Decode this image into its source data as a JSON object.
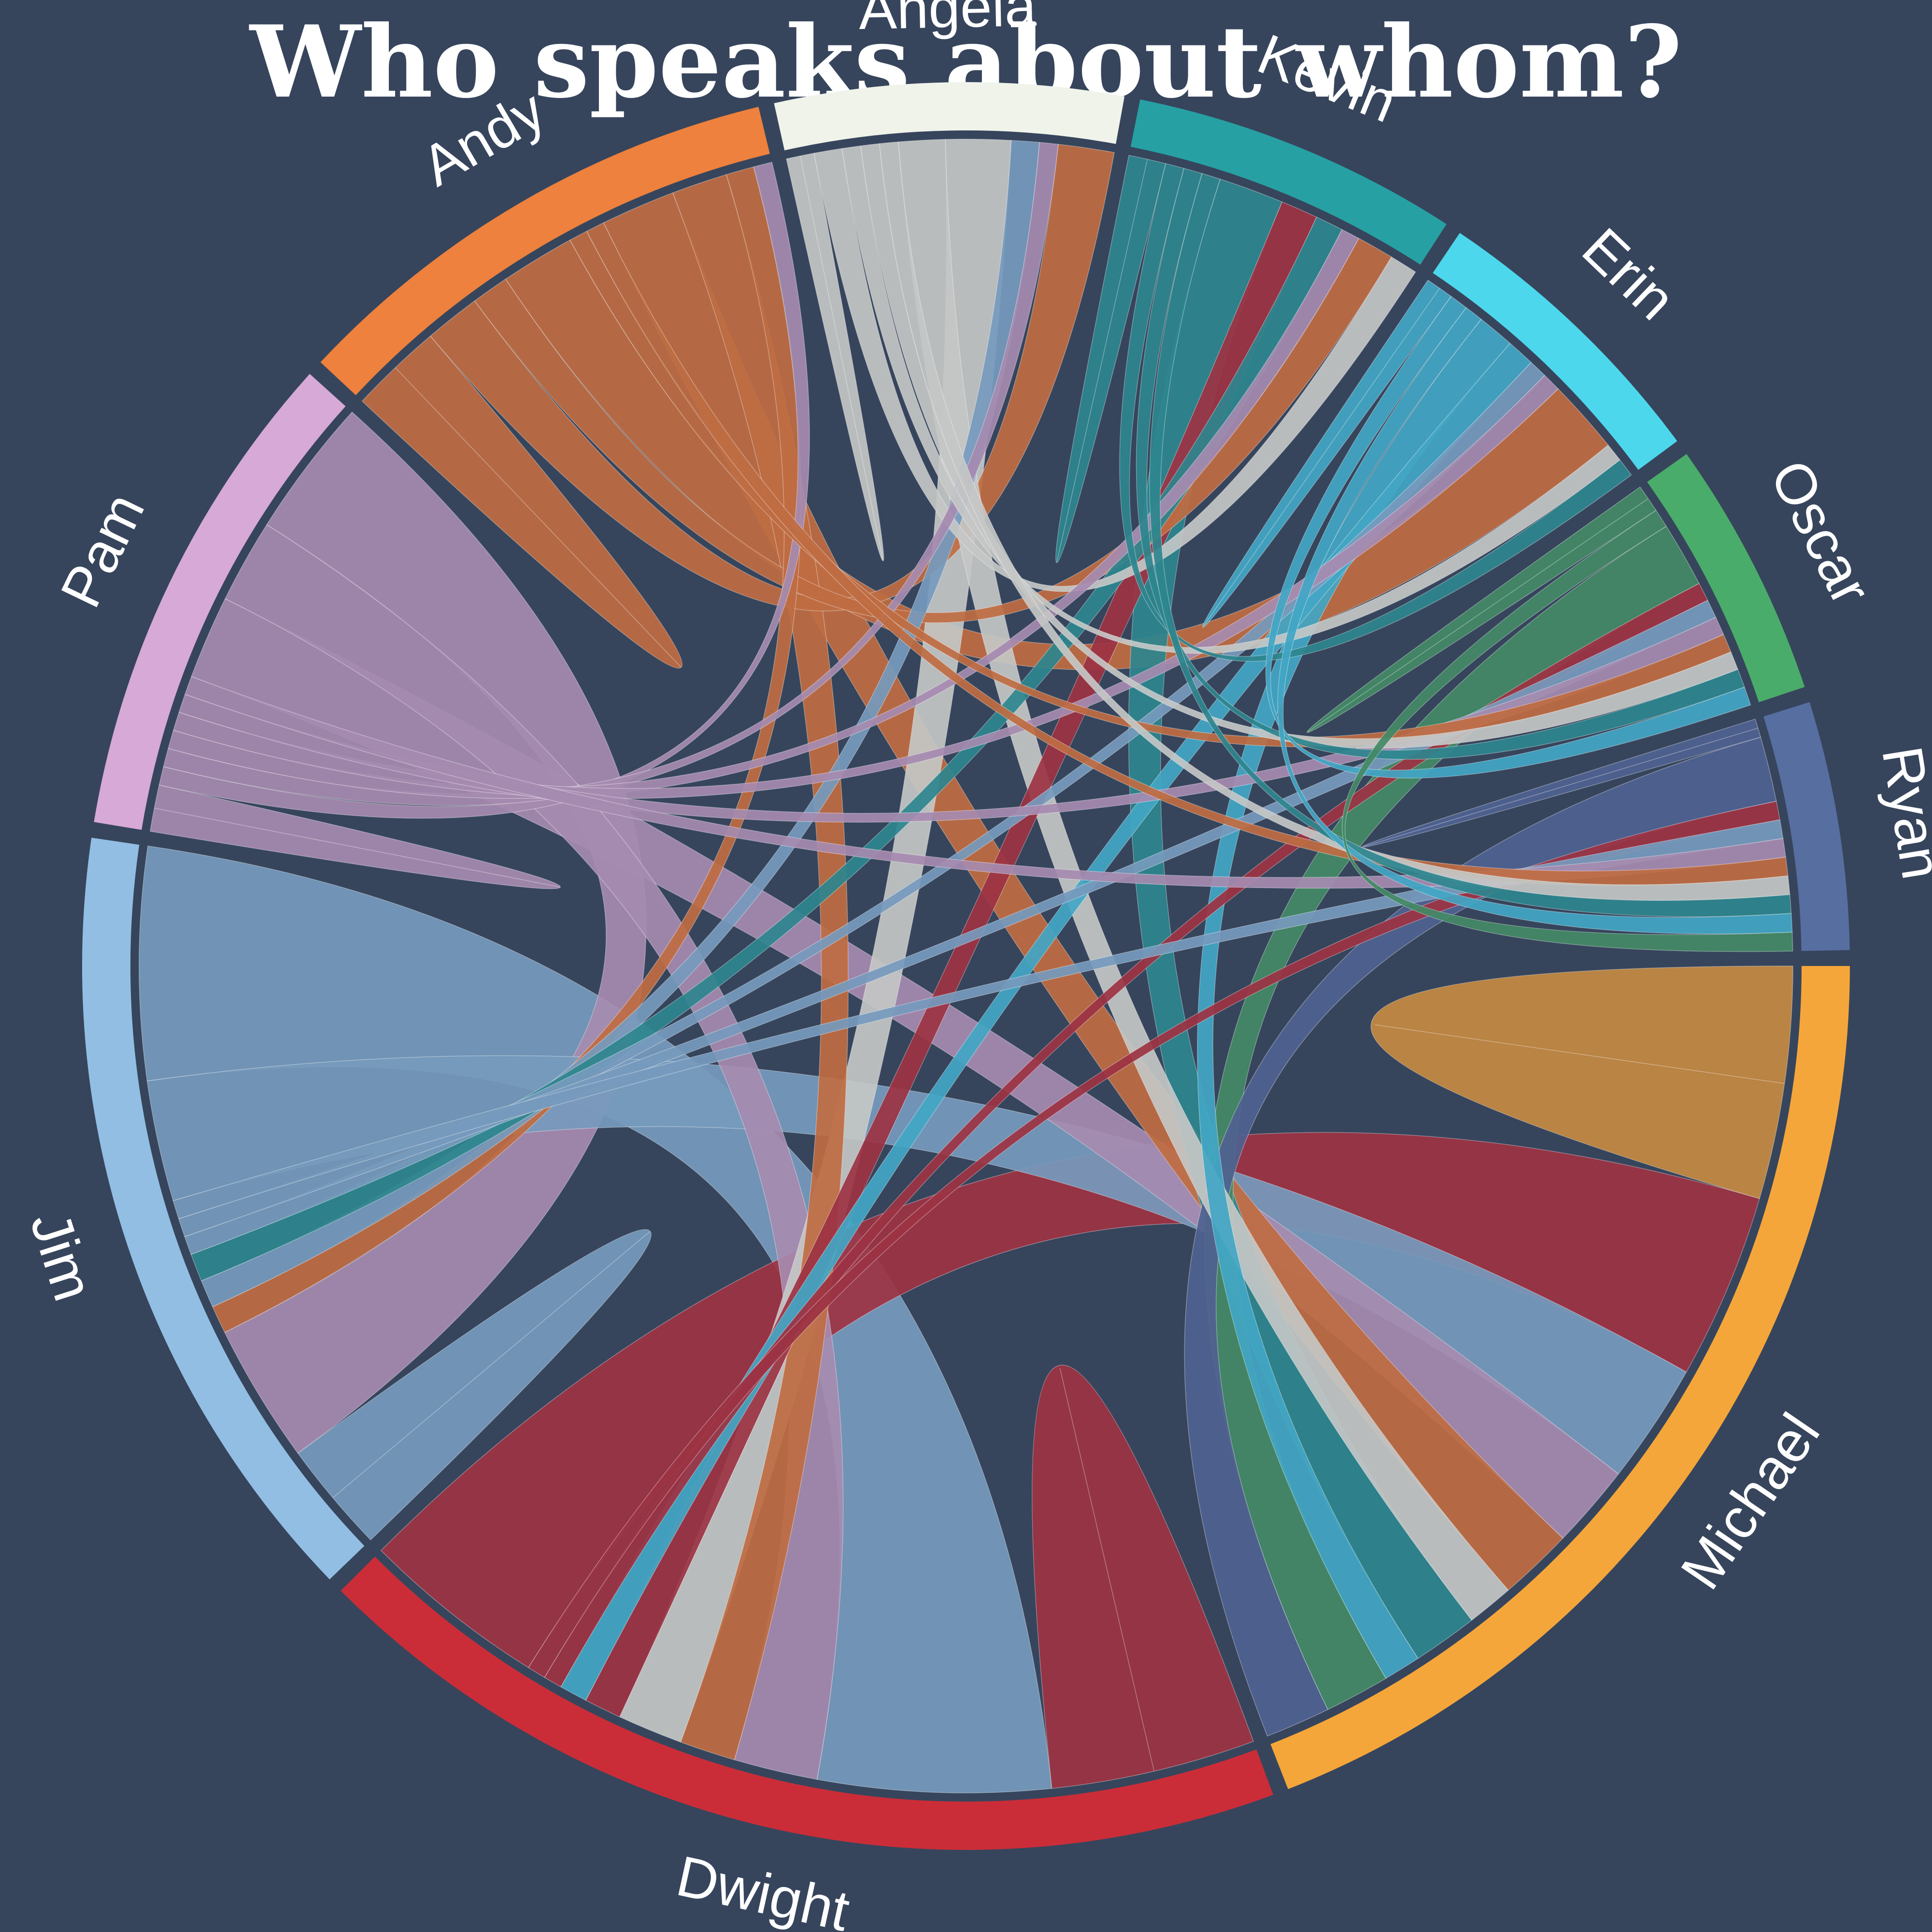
{
  "chart_data": {
    "type": "chord",
    "title": "Who speaks about whom?",
    "groups": [
      {
        "name": "Michael",
        "color": "#f5a63a",
        "ribbon_color": "#c48a42"
      },
      {
        "name": "Dwight",
        "color": "#cb2d38",
        "ribbon_color": "#9c3343"
      },
      {
        "name": "Jim",
        "color": "#93bee3",
        "ribbon_color": "#769abd"
      },
      {
        "name": "Pam",
        "color": "#d6a9d6",
        "ribbon_color": "#a68bb0"
      },
      {
        "name": "Andy",
        "color": "#ed813d",
        "ribbon_color": "#bf6c42"
      },
      {
        "name": "Angela",
        "color": "#f0f3ea",
        "ribbon_color": "#c4c7c6"
      },
      {
        "name": "Kevin",
        "color": "#27a0a3",
        "ribbon_color": "#2e858e"
      },
      {
        "name": "Erin",
        "color": "#4dd7ed",
        "ribbon_color": "#42a6c4"
      },
      {
        "name": "Oscar",
        "color": "#4aac6a",
        "ribbon_color": "#438a66"
      },
      {
        "name": "Ryan",
        "color": "#576ea1",
        "ribbon_color": "#4f6290"
      }
    ],
    "matrix": [
      [
        25,
        6,
        2,
        3,
        3,
        2,
        2,
        1,
        2,
        1
      ],
      [
        14,
        22,
        7,
        3,
        2,
        2,
        2,
        1,
        1,
        1
      ],
      [
        11,
        18,
        12,
        3,
        1,
        2,
        1,
        1,
        1,
        1
      ],
      [
        6,
        6,
        12,
        5,
        1,
        1,
        1,
        1,
        1,
        1
      ],
      [
        5,
        4,
        2,
        1,
        10,
        3,
        2,
        4,
        1,
        1
      ],
      [
        3,
        5,
        1,
        1,
        3,
        3,
        2,
        1,
        1,
        1
      ],
      [
        5,
        2,
        2,
        1,
        2,
        1,
        4,
        1,
        1,
        1
      ],
      [
        3,
        2,
        1,
        1,
        4,
        1,
        1,
        3,
        1,
        1
      ],
      [
        5,
        1,
        1,
        1,
        1,
        1,
        1,
        1,
        3,
        1
      ],
      [
        6,
        1,
        1,
        1,
        1,
        1,
        1,
        1,
        1,
        2
      ]
    ]
  }
}
